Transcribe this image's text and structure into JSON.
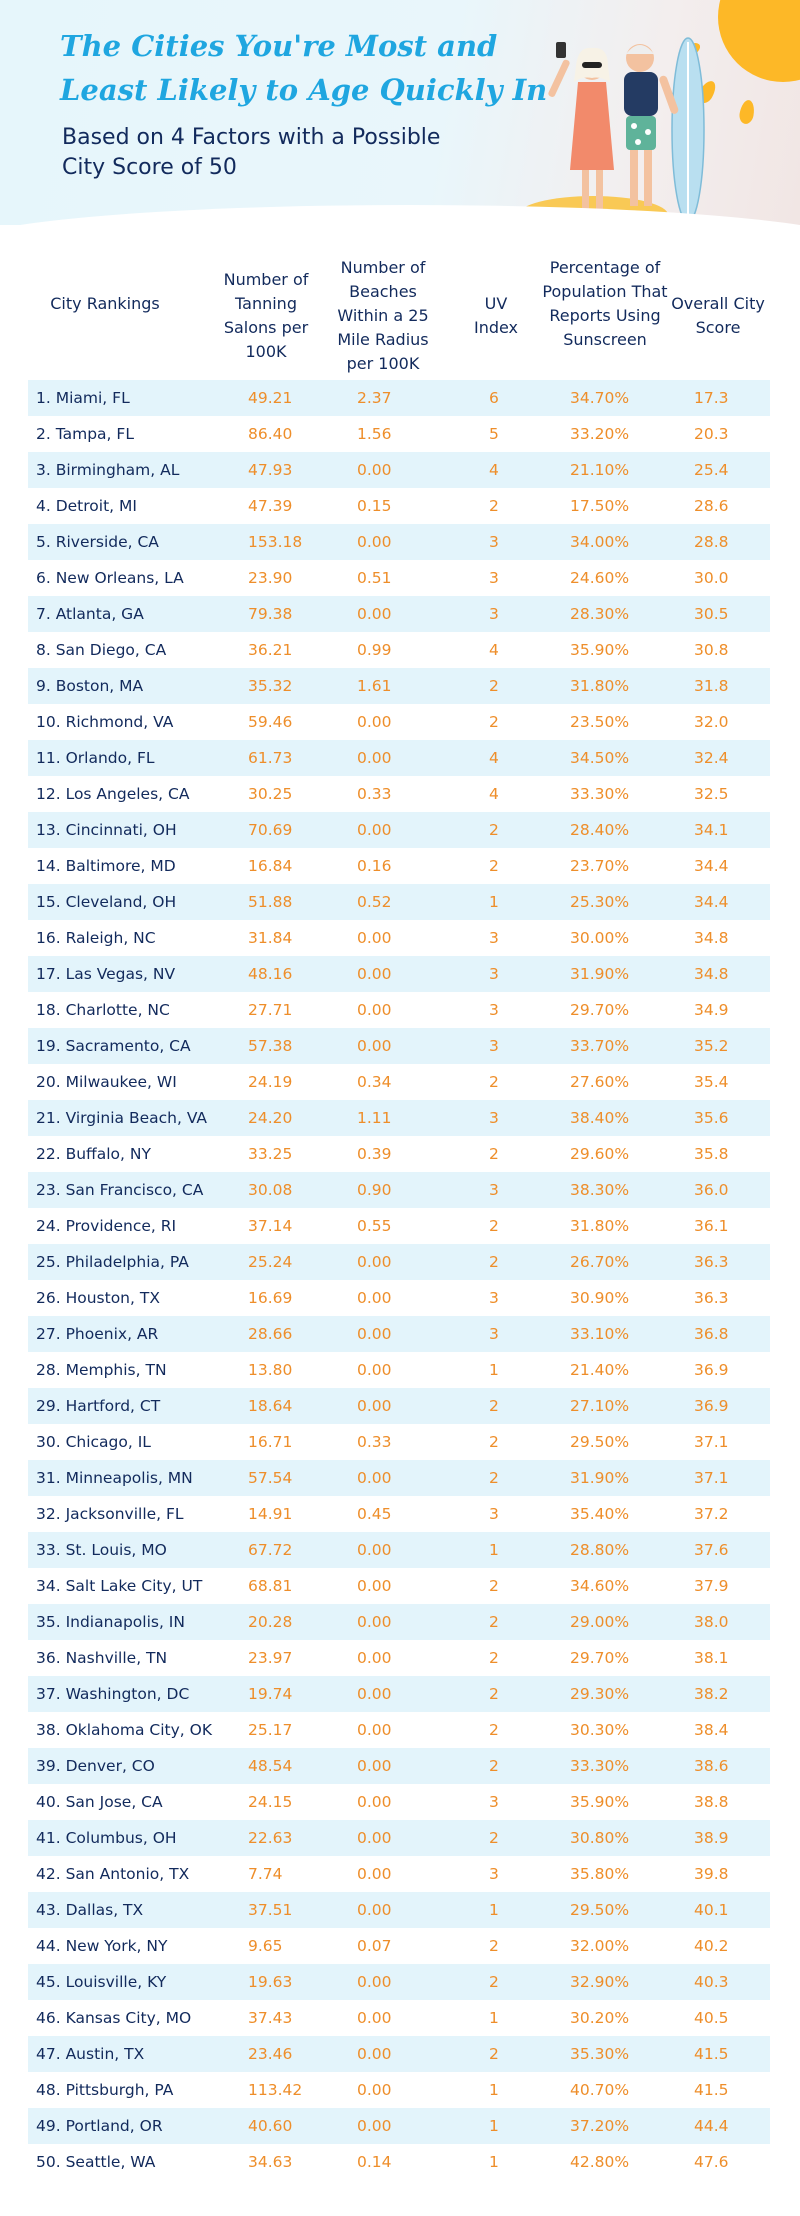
{
  "title": "The Cities You're Most and Least Likely to Age Quickly In",
  "subtitle": "Based on 4 Factors with a Possible City Score of 50",
  "colors": {
    "title": "#1fa6e0",
    "text_dark": "#122a5c",
    "values": "#ee8e2a",
    "row_shade": "#e3f4fb",
    "sun": "#fdb827"
  },
  "columns": {
    "city": "City Rankings",
    "salons": "Number of Tanning Salons per 100K",
    "beaches": "Number of Beaches Within a 25 Mile Radius per 100K",
    "uv": "UV Index",
    "sunscreen": "Percentage of Population That Reports Using Sunscreen",
    "score": "Overall City Score"
  },
  "rows": [
    {
      "city": "1. Miami, FL",
      "salons": "49.21",
      "beaches": "2.37",
      "uv": "6",
      "sunscreen": "34.70%",
      "score": "17.3"
    },
    {
      "city": "2. Tampa, FL",
      "salons": "86.40",
      "beaches": "1.56",
      "uv": "5",
      "sunscreen": "33.20%",
      "score": "20.3"
    },
    {
      "city": "3. Birmingham, AL",
      "salons": "47.93",
      "beaches": "0.00",
      "uv": "4",
      "sunscreen": "21.10%",
      "score": "25.4"
    },
    {
      "city": "4. Detroit, MI",
      "salons": "47.39",
      "beaches": "0.15",
      "uv": "2",
      "sunscreen": "17.50%",
      "score": "28.6"
    },
    {
      "city": "5. Riverside, CA",
      "salons": "153.18",
      "beaches": "0.00",
      "uv": "3",
      "sunscreen": "34.00%",
      "score": "28.8"
    },
    {
      "city": "6. New Orleans, LA",
      "salons": "23.90",
      "beaches": "0.51",
      "uv": "3",
      "sunscreen": "24.60%",
      "score": "30.0"
    },
    {
      "city": "7. Atlanta, GA",
      "salons": "79.38",
      "beaches": "0.00",
      "uv": "3",
      "sunscreen": "28.30%",
      "score": "30.5"
    },
    {
      "city": "8. San Diego, CA",
      "salons": "36.21",
      "beaches": "0.99",
      "uv": "4",
      "sunscreen": "35.90%",
      "score": "30.8"
    },
    {
      "city": "9. Boston, MA",
      "salons": "35.32",
      "beaches": "1.61",
      "uv": "2",
      "sunscreen": "31.80%",
      "score": "31.8"
    },
    {
      "city": "10. Richmond, VA",
      "salons": "59.46",
      "beaches": "0.00",
      "uv": "2",
      "sunscreen": "23.50%",
      "score": "32.0"
    },
    {
      "city": "11. Orlando, FL",
      "salons": "61.73",
      "beaches": "0.00",
      "uv": "4",
      "sunscreen": "34.50%",
      "score": "32.4"
    },
    {
      "city": "12. Los Angeles, CA",
      "salons": "30.25",
      "beaches": "0.33",
      "uv": "4",
      "sunscreen": "33.30%",
      "score": "32.5"
    },
    {
      "city": "13. Cincinnati, OH",
      "salons": "70.69",
      "beaches": "0.00",
      "uv": "2",
      "sunscreen": "28.40%",
      "score": "34.1"
    },
    {
      "city": "14. Baltimore, MD",
      "salons": "16.84",
      "beaches": "0.16",
      "uv": "2",
      "sunscreen": "23.70%",
      "score": "34.4"
    },
    {
      "city": "15. Cleveland, OH",
      "salons": "51.88",
      "beaches": "0.52",
      "uv": "1",
      "sunscreen": "25.30%",
      "score": "34.4"
    },
    {
      "city": "16. Raleigh, NC",
      "salons": "31.84",
      "beaches": "0.00",
      "uv": "3",
      "sunscreen": "30.00%",
      "score": "34.8"
    },
    {
      "city": "17. Las Vegas, NV",
      "salons": "48.16",
      "beaches": "0.00",
      "uv": "3",
      "sunscreen": "31.90%",
      "score": "34.8"
    },
    {
      "city": "18. Charlotte, NC",
      "salons": "27.71",
      "beaches": "0.00",
      "uv": "3",
      "sunscreen": "29.70%",
      "score": "34.9"
    },
    {
      "city": "19. Sacramento, CA",
      "salons": "57.38",
      "beaches": "0.00",
      "uv": "3",
      "sunscreen": "33.70%",
      "score": "35.2"
    },
    {
      "city": "20. Milwaukee, WI",
      "salons": "24.19",
      "beaches": "0.34",
      "uv": "2",
      "sunscreen": "27.60%",
      "score": "35.4"
    },
    {
      "city": "21. Virginia Beach, VA",
      "salons": "24.20",
      "beaches": "1.11",
      "uv": "3",
      "sunscreen": "38.40%",
      "score": "35.6"
    },
    {
      "city": "22. Buffalo, NY",
      "salons": "33.25",
      "beaches": "0.39",
      "uv": "2",
      "sunscreen": "29.60%",
      "score": "35.8"
    },
    {
      "city": "23. San Francisco, CA",
      "salons": "30.08",
      "beaches": "0.90",
      "uv": "3",
      "sunscreen": "38.30%",
      "score": "36.0"
    },
    {
      "city": "24. Providence, RI",
      "salons": "37.14",
      "beaches": "0.55",
      "uv": "2",
      "sunscreen": "31.80%",
      "score": "36.1"
    },
    {
      "city": "25. Philadelphia, PA",
      "salons": "25.24",
      "beaches": "0.00",
      "uv": "2",
      "sunscreen": "26.70%",
      "score": "36.3"
    },
    {
      "city": "26. Houston, TX",
      "salons": "16.69",
      "beaches": "0.00",
      "uv": "3",
      "sunscreen": "30.90%",
      "score": "36.3"
    },
    {
      "city": "27. Phoenix, AR",
      "salons": "28.66",
      "beaches": "0.00",
      "uv": "3",
      "sunscreen": "33.10%",
      "score": "36.8"
    },
    {
      "city": "28. Memphis, TN",
      "salons": "13.80",
      "beaches": "0.00",
      "uv": "1",
      "sunscreen": "21.40%",
      "score": "36.9"
    },
    {
      "city": "29. Hartford, CT",
      "salons": "18.64",
      "beaches": "0.00",
      "uv": "2",
      "sunscreen": "27.10%",
      "score": "36.9"
    },
    {
      "city": "30. Chicago, IL",
      "salons": "16.71",
      "beaches": "0.33",
      "uv": "2",
      "sunscreen": "29.50%",
      "score": "37.1"
    },
    {
      "city": "31. Minneapolis, MN",
      "salons": "57.54",
      "beaches": "0.00",
      "uv": "2",
      "sunscreen": "31.90%",
      "score": "37.1"
    },
    {
      "city": "32. Jacksonville, FL",
      "salons": "14.91",
      "beaches": "0.45",
      "uv": "3",
      "sunscreen": "35.40%",
      "score": "37.2"
    },
    {
      "city": "33. St. Louis, MO",
      "salons": "67.72",
      "beaches": "0.00",
      "uv": "1",
      "sunscreen": "28.80%",
      "score": "37.6"
    },
    {
      "city": "34. Salt Lake City, UT",
      "salons": "68.81",
      "beaches": "0.00",
      "uv": "2",
      "sunscreen": "34.60%",
      "score": "37.9"
    },
    {
      "city": "35. Indianapolis, IN",
      "salons": "20.28",
      "beaches": "0.00",
      "uv": "2",
      "sunscreen": "29.00%",
      "score": "38.0"
    },
    {
      "city": "36. Nashville, TN",
      "salons": "23.97",
      "beaches": "0.00",
      "uv": "2",
      "sunscreen": "29.70%",
      "score": "38.1"
    },
    {
      "city": "37. Washington, DC",
      "salons": "19.74",
      "beaches": "0.00",
      "uv": "2",
      "sunscreen": "29.30%",
      "score": "38.2"
    },
    {
      "city": "38. Oklahoma City, OK",
      "salons": "25.17",
      "beaches": "0.00",
      "uv": "2",
      "sunscreen": "30.30%",
      "score": "38.4"
    },
    {
      "city": "39. Denver, CO",
      "salons": "48.54",
      "beaches": "0.00",
      "uv": "2",
      "sunscreen": "33.30%",
      "score": "38.6"
    },
    {
      "city": "40. San Jose, CA",
      "salons": "24.15",
      "beaches": "0.00",
      "uv": "3",
      "sunscreen": "35.90%",
      "score": "38.8"
    },
    {
      "city": "41. Columbus, OH",
      "salons": "22.63",
      "beaches": "0.00",
      "uv": "2",
      "sunscreen": "30.80%",
      "score": "38.9"
    },
    {
      "city": "42. San Antonio, TX",
      "salons": "7.74",
      "beaches": "0.00",
      "uv": "3",
      "sunscreen": "35.80%",
      "score": "39.8"
    },
    {
      "city": "43. Dallas, TX",
      "salons": "37.51",
      "beaches": "0.00",
      "uv": "1",
      "sunscreen": "29.50%",
      "score": "40.1"
    },
    {
      "city": "44. New York, NY",
      "salons": "9.65",
      "beaches": "0.07",
      "uv": "2",
      "sunscreen": "32.00%",
      "score": "40.2"
    },
    {
      "city": "45. Louisville, KY",
      "salons": "19.63",
      "beaches": "0.00",
      "uv": "2",
      "sunscreen": "32.90%",
      "score": "40.3"
    },
    {
      "city": "46. Kansas City, MO",
      "salons": "37.43",
      "beaches": "0.00",
      "uv": "1",
      "sunscreen": "30.20%",
      "score": "40.5"
    },
    {
      "city": "47. Austin, TX",
      "salons": "23.46",
      "beaches": "0.00",
      "uv": "2",
      "sunscreen": "35.30%",
      "score": "41.5"
    },
    {
      "city": "48. Pittsburgh, PA",
      "salons": "113.42",
      "beaches": "0.00",
      "uv": "1",
      "sunscreen": "40.70%",
      "score": "41.5"
    },
    {
      "city": "49. Portland, OR",
      "salons": "40.60",
      "beaches": "0.00",
      "uv": "1",
      "sunscreen": "37.20%",
      "score": "44.4"
    },
    {
      "city": "50. Seattle, WA",
      "salons": "34.63",
      "beaches": "0.14",
      "uv": "1",
      "sunscreen": "42.80%",
      "score": "47.6"
    }
  ]
}
